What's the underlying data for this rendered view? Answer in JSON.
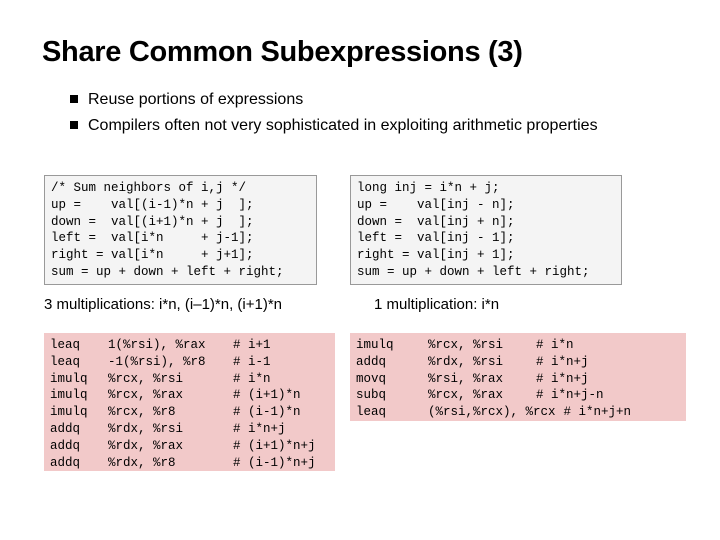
{
  "header": {
    "title": "Share Common Subexpressions (3)"
  },
  "bullets": [
    "Reuse portions of expressions",
    "Compilers often not very sophisticated in exploiting arithmetic properties"
  ],
  "code_left": [
    "/* Sum neighbors of i,j */",
    "up =    val[(i-1)*n + j  ];",
    "down =  val[(i+1)*n + j  ];",
    "left =  val[i*n     + j-1];",
    "right = val[i*n     + j+1];",
    "sum = up + down + left + right;"
  ],
  "code_right": [
    "long inj = i*n + j;",
    "up =    val[inj - n];",
    "down =  val[inj + n];",
    "left =  val[inj - 1];",
    "right = val[inj + 1];",
    "sum = up + down + left + right;"
  ],
  "caption_left": "3 multiplications: i*n, (i–1)*n, (i+1)*n",
  "caption_right": "1 multiplication: i*n",
  "asm_left": [
    [
      "leaq",
      "1(%rsi), %rax",
      "# i+1"
    ],
    [
      "leaq",
      "-1(%rsi), %r8",
      "# i-1"
    ],
    [
      "imulq",
      "%rcx, %rsi",
      "# i*n"
    ],
    [
      "imulq",
      "%rcx, %rax",
      "# (i+1)*n"
    ],
    [
      "imulq",
      "%rcx, %r8",
      "# (i-1)*n"
    ],
    [
      "addq",
      "%rdx, %rsi",
      "# i*n+j"
    ],
    [
      "addq",
      "%rdx, %rax",
      "# (i+1)*n+j"
    ],
    [
      "addq",
      "%rdx, %r8",
      "# (i-1)*n+j"
    ]
  ],
  "asm_right": [
    [
      "imulq",
      "%rcx, %rsi",
      "# i*n"
    ],
    [
      "addq",
      "%rdx, %rsi",
      "# i*n+j"
    ],
    [
      "movq",
      "%rsi, %rax",
      "# i*n+j"
    ],
    [
      "subq",
      "%rcx, %rax",
      "# i*n+j-n"
    ],
    [
      "leaq",
      "(%rsi,%rcx), %rcx",
      "# i*n+j+n"
    ]
  ]
}
